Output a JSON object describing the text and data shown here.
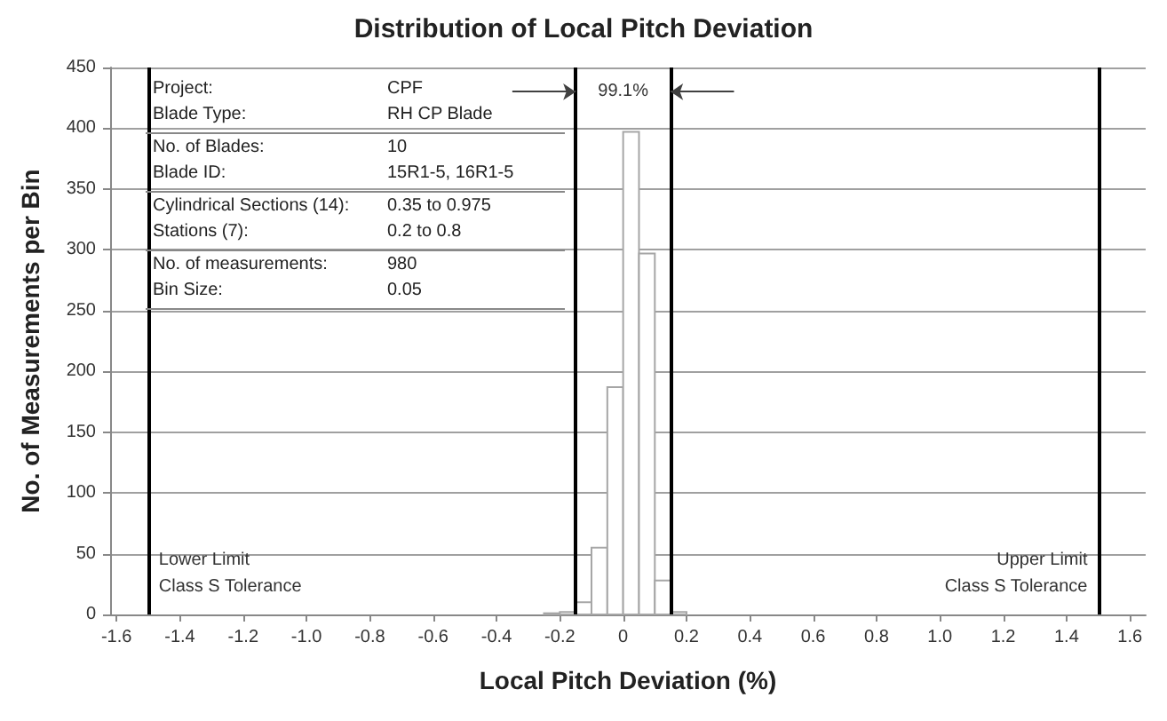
{
  "chart_data": {
    "type": "histogram",
    "title": "Distribution of Local Pitch Deviation",
    "xlabel": "Local Pitch Deviation (%)",
    "ylabel": "No. of Measurements per Bin",
    "bins": [
      -0.25,
      -0.2,
      -0.15,
      -0.1,
      -0.05,
      0,
      0.05,
      0.1,
      0.15,
      0.2
    ],
    "values": [
      1,
      2,
      10,
      55,
      187,
      397,
      297,
      28,
      2
    ],
    "color": "#ffffff",
    "xlim": [
      -1.62,
      1.65
    ],
    "xticks": [
      -1.6,
      -1.4,
      -1.2,
      {
        "value": -1.0,
        "label": "-1.0"
      },
      -0.8,
      -0.6,
      -0.4,
      -0.2,
      0,
      0.2,
      0.4,
      0.6,
      0.8,
      {
        "value": 1.0,
        "label": "1.0"
      },
      1.2,
      1.4,
      1.6
    ],
    "ylim": [
      0,
      450
    ],
    "yticks": [
      0,
      50,
      100,
      150,
      200,
      250,
      300,
      350,
      400,
      450
    ],
    "grid": "y",
    "ref_lines": [
      {
        "axis": "x",
        "value": -1.5,
        "label": "Lower Limit\nClass S Tolerance",
        "color": "#000000"
      },
      {
        "axis": "x",
        "value": 1.5,
        "label": "Upper Limit\nClass S Tolerance",
        "color": "#000000"
      },
      {
        "axis": "x",
        "value": -0.15,
        "color": "#000000"
      },
      {
        "axis": "x",
        "value": 0.15,
        "color": "#000000"
      }
    ],
    "annotations": [
      {
        "text": "99.1%",
        "x": 0,
        "y": 430
      },
      "Project:",
      "CPF",
      "Blade Type:",
      "RH CP Blade",
      "No. of Blades:",
      "10",
      "Blade ID:",
      "15R1-5, 16R1-5",
      "Cylindrical Sections (14):",
      "0.35 to 0.975",
      "Stations (7):",
      "0.2 to 0.8",
      "No. of measurements:",
      "980",
      "Bin Size:",
      "0.05"
    ]
  }
}
